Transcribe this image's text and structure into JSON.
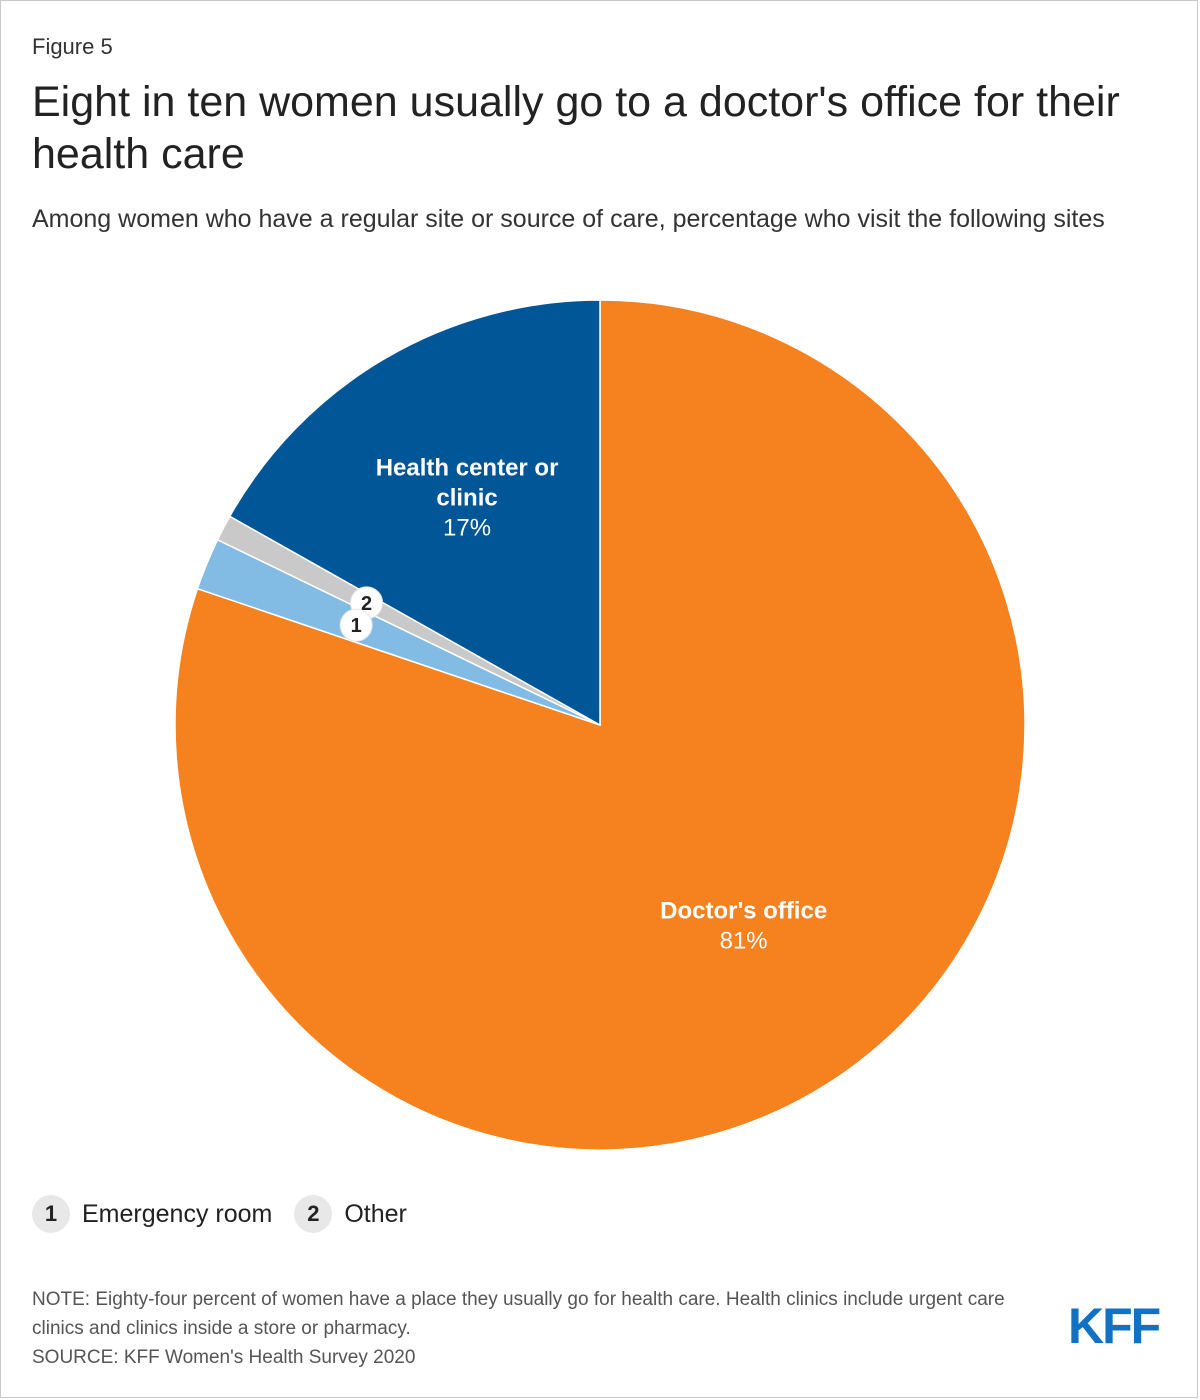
{
  "figure_label": "Figure 5",
  "title": "Eight in ten women usually go to a doctor's office for their health care",
  "subtitle": "Among women who have a regular site or source of care, percentage who visit the following sites",
  "chart_data": {
    "type": "pie",
    "title": "Eight in ten women usually go to a doctor's office for their health care",
    "start_angle_deg": 0,
    "direction": "clockwise",
    "slices": [
      {
        "name": "Doctor's office",
        "value": 81,
        "label_lines": [
          "Doctor's office"
        ],
        "value_label": "81%",
        "color": "#f5821f",
        "label_mode": "inside"
      },
      {
        "name": "Emergency room",
        "value": 2,
        "marker": "1",
        "color": "#82bce4",
        "label_mode": "marker"
      },
      {
        "name": "Other",
        "value": 1,
        "marker": "2",
        "color": "#c9c9c9",
        "label_mode": "marker"
      },
      {
        "name": "Health center or clinic",
        "value": 17,
        "label_lines": [
          "Health center or",
          "clinic"
        ],
        "value_label": "17%",
        "color": "#005696",
        "label_mode": "inside"
      }
    ]
  },
  "legend": [
    {
      "marker": "1",
      "label": "Emergency room"
    },
    {
      "marker": "2",
      "label": "Other"
    }
  ],
  "notes": {
    "note": "NOTE: Eighty-four percent of women have a place they usually go for health care. Health clinics include urgent care clinics and clinics inside a store or pharmacy.",
    "source": "SOURCE: KFF Women's Health Survey 2020"
  },
  "logo": "KFF",
  "colors": {
    "doctor": "#f5821f",
    "er": "#82bce4",
    "other": "#c9c9c9",
    "clinic": "#005696",
    "brand": "#1172c4"
  }
}
